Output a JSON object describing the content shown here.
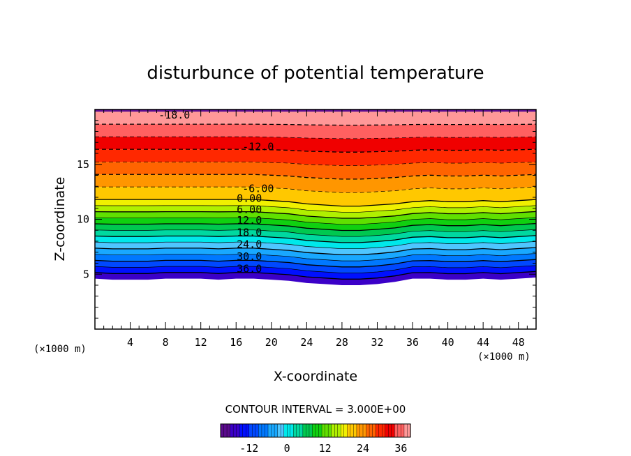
{
  "chart_data": {
    "type": "contour",
    "title": "disturbunce of potential temperature",
    "xlabel": "X-coordinate",
    "ylabel": "Z-coordinate",
    "x_unit": "(×1000 m)",
    "y_unit": "(×1000 m)",
    "xlim": [
      0,
      50
    ],
    "ylim": [
      0,
      20
    ],
    "x_ticks": [
      "4",
      "8",
      "12",
      "16",
      "20",
      "24",
      "28",
      "32",
      "36",
      "40",
      "44",
      "48"
    ],
    "y_ticks": [
      "5",
      "10",
      "15"
    ],
    "contour_interval_text": "CONTOUR INTERVAL = 3.000E+00",
    "contour_levels": [
      -21,
      -18,
      -15,
      -12,
      -9,
      -6,
      -3,
      0,
      3,
      6,
      9,
      12,
      15,
      18,
      21,
      24,
      27,
      30,
      33,
      36,
      39
    ],
    "contour_labels": [
      {
        "text": "-18.0",
        "x": 9,
        "z": 19.5
      },
      {
        "text": "-12.0",
        "x": 18.5,
        "z": 16.6
      },
      {
        "text": "-6.00",
        "x": 18.5,
        "z": 12.8
      },
      {
        "text": "0.00",
        "x": 17.5,
        "z": 11.9
      },
      {
        "text": "6.00",
        "x": 17.5,
        "z": 10.9
      },
      {
        "text": "12.0",
        "x": 17.5,
        "z": 9.9
      },
      {
        "text": "18.0",
        "x": 17.5,
        "z": 8.8
      },
      {
        "text": "24.0",
        "x": 17.5,
        "z": 7.7
      },
      {
        "text": "30.0",
        "x": 17.5,
        "z": 6.6
      },
      {
        "text": "36.0",
        "x": 17.5,
        "z": 5.5
      }
    ],
    "field_profile": {
      "z_bottom": [
        4.6,
        4.5,
        4.5,
        4.5,
        4.6,
        4.6,
        4.6,
        4.5,
        4.6,
        4.6,
        4.5,
        4.4,
        4.2,
        4.1,
        4.0,
        4.0,
        4.1,
        4.3,
        4.6,
        4.6,
        4.5,
        4.5,
        4.6,
        4.5,
        4.6,
        4.7
      ],
      "z_zero": [
        11.8,
        11.8,
        11.8,
        11.8,
        11.8,
        11.8,
        11.8,
        11.8,
        11.8,
        11.8,
        11.7,
        11.6,
        11.4,
        11.3,
        11.2,
        11.2,
        11.3,
        11.4,
        11.6,
        11.7,
        11.6,
        11.6,
        11.7,
        11.6,
        11.7,
        11.8
      ],
      "z_top": 19.8
    },
    "colorbar": {
      "tick_labels": [
        "-12",
        "0",
        "12",
        "24",
        "36"
      ],
      "tick_values": [
        -12,
        0,
        12,
        24,
        36
      ],
      "range": [
        -21,
        39
      ]
    },
    "colormap": [
      "#5a0a8c",
      "#3b00c8",
      "#0010ff",
      "#0048ff",
      "#0078ff",
      "#19a8ff",
      "#4fc6ff",
      "#00e8ea",
      "#00d8a0",
      "#00c850",
      "#10d010",
      "#60e000",
      "#b0f000",
      "#f0f000",
      "#ffc800",
      "#ff9600",
      "#ff6400",
      "#ff2800",
      "#f00000",
      "#ff6060",
      "#ff9898"
    ]
  }
}
